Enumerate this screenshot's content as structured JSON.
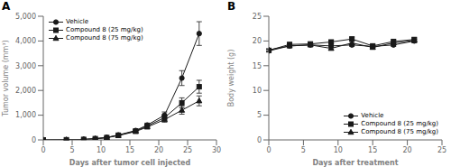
{
  "chart_data": [
    {
      "type": "line",
      "title": "A",
      "x_label": "Days after tumor cell injected",
      "y_label": "Tumor volume (mm³)",
      "xlim": [
        0,
        30
      ],
      "xticks": [
        0,
        5,
        10,
        15,
        20,
        25,
        30
      ],
      "ylim": [
        0,
        5000
      ],
      "yticks": [
        0,
        {
          "value": 1000,
          "label": "1,000"
        },
        {
          "value": 2000,
          "label": "2,000"
        },
        {
          "value": 3000,
          "label": "3,000"
        },
        {
          "value": 4000,
          "label": "4,000"
        },
        {
          "value": 5000,
          "label": "5,000"
        }
      ],
      "grid": false,
      "legend": "upper left",
      "x": [
        0,
        4,
        7,
        9,
        11,
        13,
        16,
        18,
        21,
        24,
        27
      ],
      "series": [
        {
          "name": "Vehicle",
          "color": "#1a1a1a",
          "marker": "circle",
          "line_style": "solid",
          "values": [
            0,
            5,
            20,
            50,
            100,
            200,
            380,
            600,
            1000,
            2500,
            4300
          ],
          "yerr": [
            0,
            4,
            8,
            15,
            20,
            35,
            50,
            80,
            130,
            300,
            480
          ]
        },
        {
          "name": "Compound 8 (25 mg/kg)",
          "color": "#1a1a1a",
          "marker": "square",
          "line_style": "solid",
          "values": [
            0,
            5,
            20,
            50,
            95,
            190,
            360,
            560,
            900,
            1500,
            2150
          ],
          "yerr": [
            0,
            4,
            8,
            15,
            18,
            30,
            45,
            70,
            120,
            200,
            260
          ]
        },
        {
          "name": "Compound 8 (75 mg/kg)",
          "color": "#1a1a1a",
          "marker": "triangle",
          "line_style": "solid",
          "values": [
            0,
            5,
            18,
            45,
            90,
            175,
            340,
            520,
            820,
            1200,
            1580
          ],
          "yerr": [
            0,
            4,
            7,
            12,
            16,
            28,
            40,
            60,
            100,
            160,
            200
          ]
        }
      ]
    },
    {
      "type": "line",
      "title": "B",
      "x_label": "Days after treatment",
      "y_label": "Body weight (g)",
      "xlim": [
        0,
        25
      ],
      "xticks": [
        0,
        5,
        10,
        15,
        20,
        25
      ],
      "ylim": [
        0,
        25
      ],
      "yticks": [
        0,
        5,
        10,
        15,
        20,
        25
      ],
      "grid": false,
      "legend": "lower right",
      "x": [
        0,
        3,
        6,
        9,
        12,
        15,
        18,
        21
      ],
      "series": [
        {
          "name": "Vehicle",
          "color": "#1a1a1a",
          "marker": "circle",
          "line_style": "solid",
          "values": [
            18.0,
            19.0,
            19.2,
            19.0,
            19.2,
            18.9,
            19.2,
            20.0
          ],
          "yerr": [
            0.25,
            0.3,
            0.3,
            0.35,
            0.3,
            0.3,
            0.3,
            0.35
          ]
        },
        {
          "name": "Compound 8 (25 mg/kg)",
          "color": "#1a1a1a",
          "marker": "square",
          "line_style": "solid",
          "values": [
            18.1,
            19.3,
            19.4,
            19.8,
            20.4,
            19.0,
            19.9,
            20.3
          ],
          "yerr": [
            0.25,
            0.3,
            0.3,
            0.35,
            0.4,
            0.3,
            0.3,
            0.35
          ]
        },
        {
          "name": "Compound 8 (75 mg/kg)",
          "color": "#1a1a1a",
          "marker": "triangle",
          "line_style": "solid",
          "values": [
            18.2,
            19.0,
            19.2,
            18.5,
            19.6,
            18.7,
            19.6,
            20.1
          ],
          "yerr": [
            0.25,
            0.3,
            0.3,
            0.3,
            0.35,
            0.3,
            0.3,
            0.3
          ]
        }
      ]
    }
  ]
}
